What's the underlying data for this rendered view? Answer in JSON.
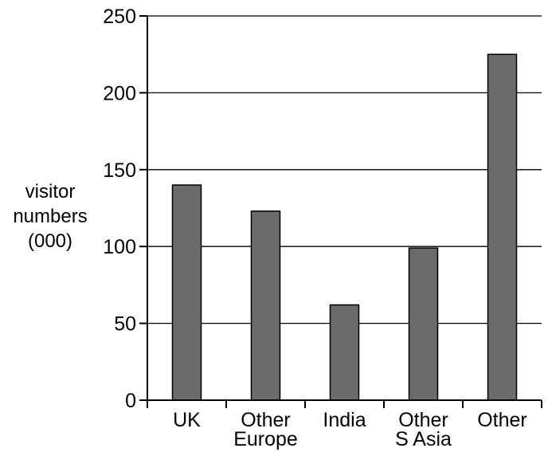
{
  "chart_data": {
    "type": "bar",
    "categories": [
      [
        "UK"
      ],
      [
        "Other",
        "Europe"
      ],
      [
        "India"
      ],
      [
        "Other",
        "S Asia"
      ],
      [
        "Other"
      ]
    ],
    "values": [
      140,
      123,
      62,
      99,
      225
    ],
    "ylabel": [
      "visitor",
      "numbers",
      "(000)"
    ],
    "xlabel": "",
    "title": "",
    "ylim": [
      0,
      250
    ],
    "yticks": [
      0,
      50,
      100,
      150,
      200,
      250
    ],
    "yticks_labels": [
      "0",
      "50",
      "100",
      "150",
      "200",
      "250"
    ],
    "grid": "horizontal",
    "legend": "none",
    "colors": {
      "bar": "#6b6b6b",
      "bar_stroke": "#000000",
      "axis": "#000000",
      "grid": "#000000"
    }
  }
}
